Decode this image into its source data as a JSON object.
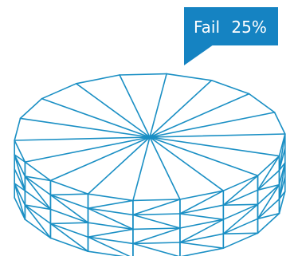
{
  "callout": {
    "label": "Fail",
    "value": "25%"
  },
  "pie": {
    "slice_count": 18,
    "layer_count": 4
  },
  "colors": {
    "stroke": "#1a8fc4",
    "callout_fill": "#1583c2",
    "callout_text": "#ffffff",
    "background": "#ffffff"
  }
}
